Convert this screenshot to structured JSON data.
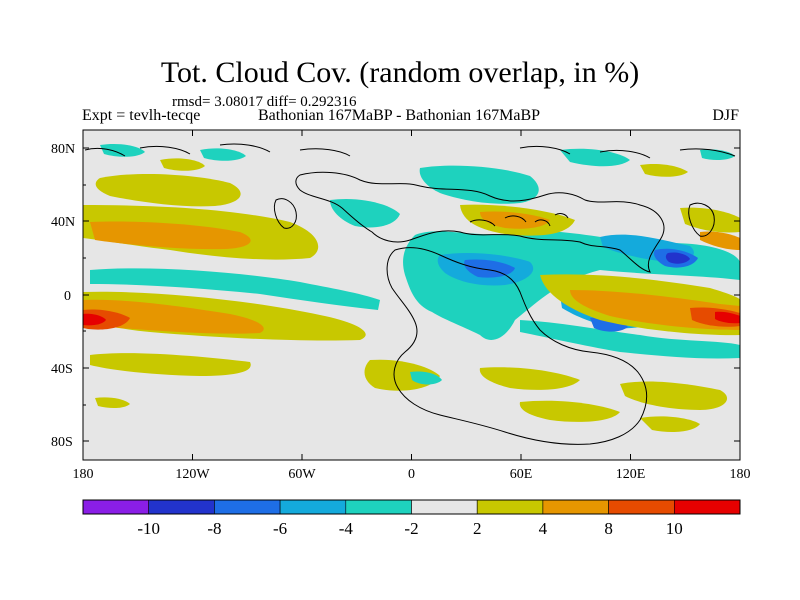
{
  "header": {
    "title": "Tot. Cloud Cov. (random overlap, in %)",
    "stats": "rmsd= 3.08017 diff= 0.292316",
    "experiment": "Expt = tevlh-tecqe",
    "comparison": "Bathonian 167MaBP - Bathonian 167MaBP",
    "season": "DJF"
  },
  "map": {
    "y_tick_labels": [
      "80N",
      "40N",
      "0",
      "40S",
      "80S"
    ],
    "x_tick_labels": [
      "180",
      "120W",
      "60W",
      "0",
      "60E",
      "120E",
      "180"
    ],
    "lat_range": [
      -90,
      90
    ],
    "lon_range": [
      -180,
      180
    ]
  },
  "colorbar": {
    "labels": [
      "-10",
      "-8",
      "-6",
      "-4",
      "-2",
      "2",
      "4",
      "8",
      "10"
    ],
    "colors": [
      "#8a1ee6",
      "#2233cc",
      "#1e6ee6",
      "#14aadc",
      "#1ed2be",
      "#e6e6e6",
      "#c8c800",
      "#e69600",
      "#e64b00",
      "#e60000"
    ]
  },
  "palette": {
    "background": "#e6e6e6",
    "cyan": "#1ed2be",
    "light_blue": "#14aadc",
    "blue": "#1e6ee6",
    "dark_blue": "#2233cc",
    "yellow": "#c8c800",
    "orange": "#e69600",
    "dark_orange": "#e64b00",
    "red": "#e60000",
    "coastline": "#000000"
  }
}
